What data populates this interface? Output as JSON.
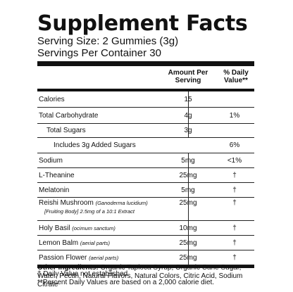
{
  "title": "Supplement Facts",
  "serving_size": "Serving Size: 2 Gummies (3g)",
  "servings_per_container": "Servings Per Container 30",
  "header": {
    "amount_line1": "Amount Per",
    "amount_line2": "Serving",
    "dv_line1": "% Daily",
    "dv_line2": "Value**"
  },
  "rows": [
    {
      "name": "Calories",
      "sub": "",
      "sub2": "",
      "amount": "15",
      "dv": ""
    },
    {
      "name": "Total Carbohydrate",
      "sub": "",
      "sub2": "",
      "amount": "4g",
      "dv": "1%"
    },
    {
      "name": "Total Sugars",
      "sub": "",
      "sub2": "",
      "amount": "3g",
      "dv": ""
    },
    {
      "name": "Includes 3g Added Sugars",
      "sub": "",
      "sub2": "",
      "amount": "",
      "dv": "6%"
    },
    {
      "name": "Sodium",
      "sub": "",
      "sub2": "",
      "amount": "5mg",
      "dv": "<1%"
    },
    {
      "name": "L-Theanine",
      "sub": "",
      "sub2": "",
      "amount": "25mg",
      "dv": "†"
    },
    {
      "name": "Melatonin",
      "sub": "",
      "sub2": "",
      "amount": "5mg",
      "dv": "†"
    },
    {
      "name": "Reishi Mushroom",
      "sub": "(Ganoderma lucidium)",
      "sub2": "[Fruiting Body] 2.5mg of a 10:1 Extract",
      "amount": "25mg",
      "dv": "†"
    },
    {
      "name": "Holy Basil",
      "sub": "(ocimum sanctum)",
      "sub2": "",
      "amount": "10mg",
      "dv": "†"
    },
    {
      "name": "Lemon Balm",
      "sub": "(aerial parts)",
      "sub2": "",
      "amount": "25mg",
      "dv": "†"
    },
    {
      "name": "Passion Flower",
      "sub": "(aerial parts)",
      "sub2": "",
      "amount": "25mg",
      "dv": "†"
    }
  ],
  "footnote_1": "† Daily Value not established",
  "footnote_2": "**Percent Daily Values are based on a 2,000 calorie diet.",
  "other_ingredients": {
    "label": "Other Ingredients:",
    "text": " Organic Tapioca Syrup, Organic Cane Sugar, Water, Pectin, Natural Flavors, Natural Colors, Citric Acid, Sodium Citrate"
  }
}
